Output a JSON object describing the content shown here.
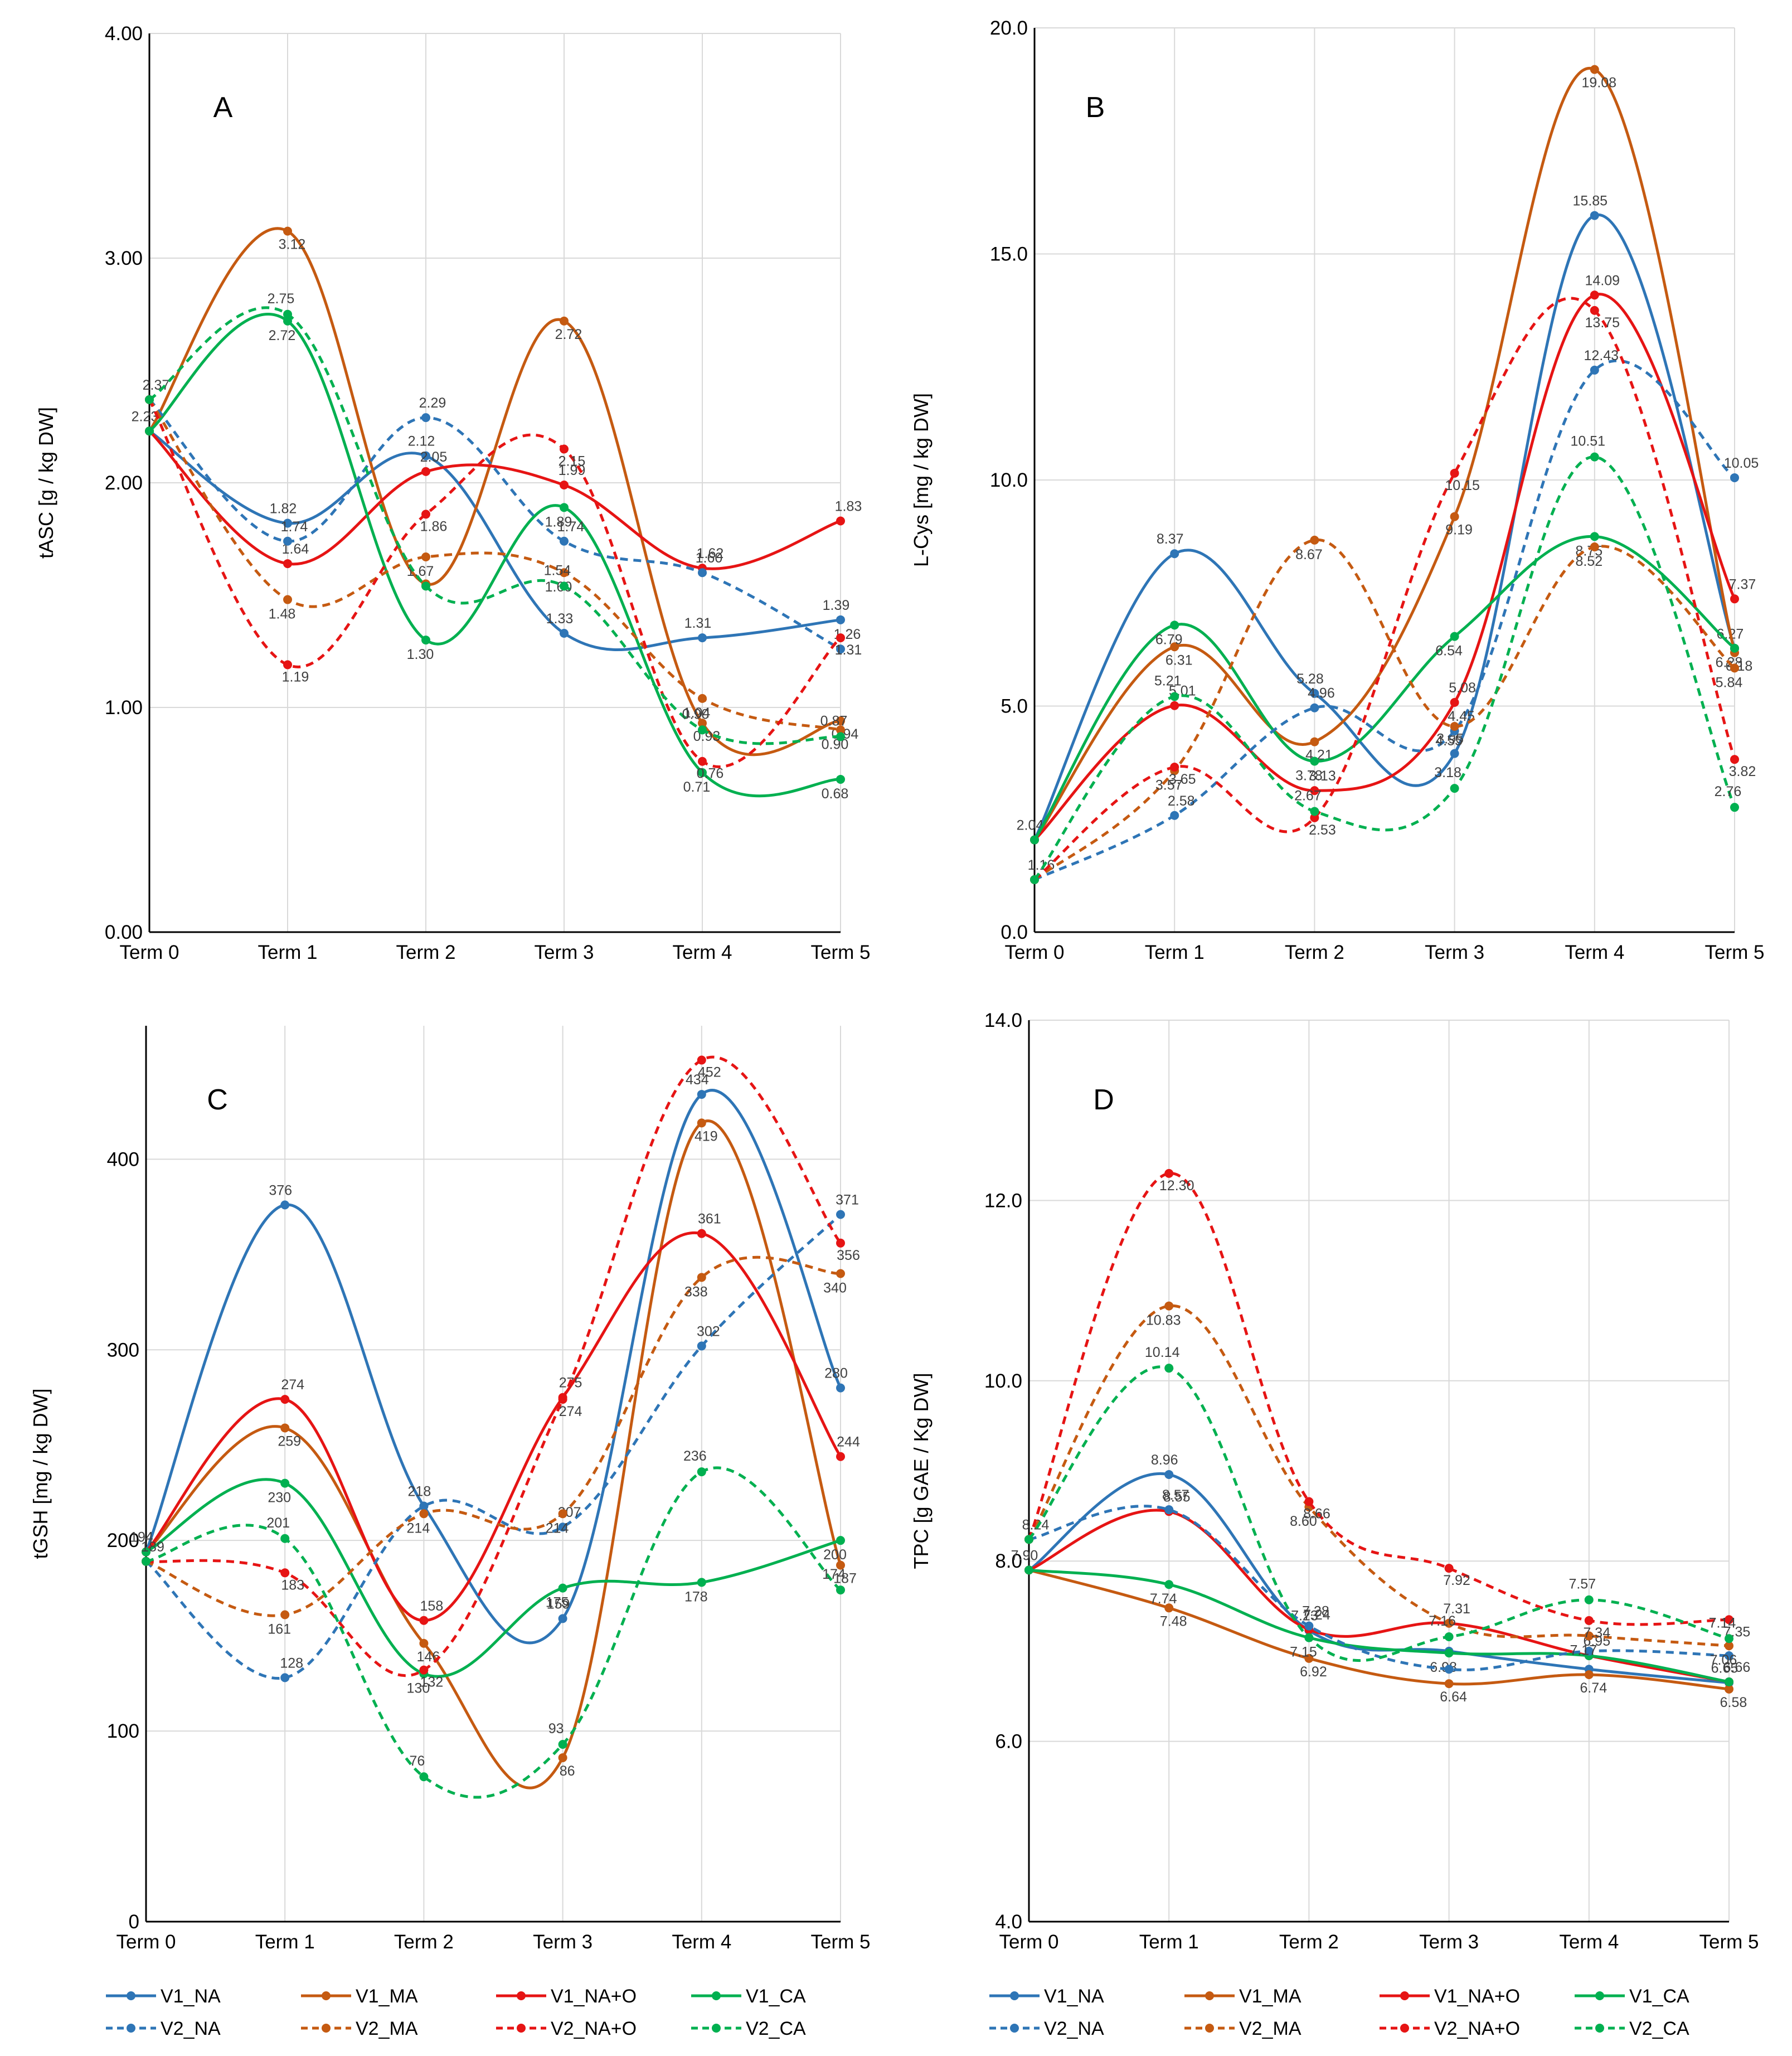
{
  "colors": {
    "blue": "#2E75B6",
    "orange": "#C55A11",
    "red": "#E61414",
    "green": "#00B050",
    "grid": "#D9D9D9",
    "axis": "#000000"
  },
  "legend": [
    {
      "name": "V1_NA",
      "color": "blue",
      "dash": false
    },
    {
      "name": "V1_MA",
      "color": "orange",
      "dash": false
    },
    {
      "name": "V1_NA+O",
      "color": "red",
      "dash": false
    },
    {
      "name": "V1_CA",
      "color": "green",
      "dash": false
    },
    {
      "name": "V2_NA",
      "color": "blue",
      "dash": true
    },
    {
      "name": "V2_MA",
      "color": "orange",
      "dash": true
    },
    {
      "name": "V2_NA+O",
      "color": "red",
      "dash": true
    },
    {
      "name": "V2_CA",
      "color": "green",
      "dash": true
    }
  ],
  "chart_data": [
    {
      "panel": "A",
      "type": "line",
      "categories": [
        "Term 0",
        "Term 1",
        "Term 2",
        "Term 3",
        "Term 4",
        "Term 5"
      ],
      "ylabel": "tASC  [g / kg DW]",
      "ylim": [
        0,
        4
      ],
      "yticks": [
        "0.00",
        "1.00",
        "2.00",
        "3.00",
        "4.00"
      ],
      "yticks_values": [
        0,
        1,
        2,
        3,
        4
      ],
      "series": [
        {
          "name": "V1_NA",
          "values": [
            2.23,
            1.82,
            2.12,
            1.33,
            1.31,
            1.39
          ],
          "labels": [
            "2.23",
            "1.82",
            "2.12",
            "1.33",
            "1.31",
            "1.39"
          ]
        },
        {
          "name": "V1_MA",
          "values": [
            2.23,
            3.12,
            1.55,
            2.72,
            0.93,
            0.94
          ],
          "labels": [
            "",
            "3.12",
            "",
            "2.72",
            "0.93",
            "0.94"
          ]
        },
        {
          "name": "V1_NA+O",
          "values": [
            2.23,
            1.64,
            2.05,
            1.99,
            1.62,
            1.83
          ],
          "labels": [
            "",
            "1.64",
            "2.05",
            "1.99",
            "1.62",
            "1.83"
          ]
        },
        {
          "name": "V1_CA",
          "values": [
            2.23,
            2.72,
            1.3,
            1.89,
            0.71,
            0.68
          ],
          "labels": [
            "",
            "2.72",
            "1.30",
            "1.89",
            "0.71",
            "0.68"
          ]
        },
        {
          "name": "V2_NA",
          "values": [
            2.37,
            1.74,
            2.29,
            1.74,
            1.6,
            1.26
          ],
          "labels": [
            "2.37",
            "1.74",
            "2.29",
            "1.74",
            "1.60",
            "1.26"
          ]
        },
        {
          "name": "V2_MA",
          "values": [
            2.37,
            1.48,
            1.67,
            1.6,
            1.04,
            0.9
          ],
          "labels": [
            "",
            "1.48",
            "1.67",
            "1.60",
            "1.04",
            "0.90"
          ]
        },
        {
          "name": "V2_NA+O",
          "values": [
            2.37,
            1.19,
            1.86,
            2.15,
            0.76,
            1.31
          ],
          "labels": [
            "",
            "1.19",
            "1.86",
            "2.15",
            "0.76",
            "1.31"
          ]
        },
        {
          "name": "V2_CA",
          "values": [
            2.37,
            2.75,
            1.54,
            1.54,
            0.9,
            0.87
          ],
          "labels": [
            "",
            "2.75",
            "",
            "1.54",
            "0.90",
            "0.87"
          ]
        }
      ]
    },
    {
      "panel": "B",
      "type": "line",
      "categories": [
        "Term 0",
        "Term 1",
        "Term 2",
        "Term 3",
        "Term 4",
        "Term 5"
      ],
      "ylabel": "L-Cys  [mg / kg DW]",
      "ylim": [
        0,
        20
      ],
      "yticks": [
        "0.0",
        "5.0",
        "10.0",
        "15.0",
        "20.0"
      ],
      "yticks_values": [
        0,
        5,
        10,
        15,
        20
      ],
      "series": [
        {
          "name": "V1_NA",
          "values": [
            2.04,
            8.37,
            5.28,
            3.95,
            15.85,
            6.27
          ],
          "labels": [
            "2.04",
            "8.37",
            "5.28",
            "3.95",
            "15.85",
            "6.27"
          ]
        },
        {
          "name": "V1_MA",
          "values": [
            2.04,
            6.31,
            4.21,
            9.19,
            19.08,
            6.18
          ],
          "labels": [
            "",
            "6.31",
            "4.21",
            "9.19",
            "19.08",
            "6.18"
          ]
        },
        {
          "name": "V1_NA+O",
          "values": [
            2.04,
            5.01,
            3.13,
            5.08,
            14.09,
            7.37
          ],
          "labels": [
            "",
            "5.01",
            "3.13",
            "5.08",
            "14.09",
            "7.37"
          ]
        },
        {
          "name": "V1_CA",
          "values": [
            2.04,
            6.79,
            3.78,
            6.54,
            8.75,
            6.28
          ],
          "labels": [
            "",
            "6.79",
            "3.78",
            "6.54",
            "8.75",
            "6.28"
          ]
        },
        {
          "name": "V2_NA",
          "values": [
            1.16,
            2.58,
            4.96,
            4.45,
            12.43,
            10.05
          ],
          "labels": [
            "1.16",
            "2.58",
            "4.96",
            "4.45",
            "12.43",
            "10.05"
          ]
        },
        {
          "name": "V2_MA",
          "values": [
            1.16,
            3.57,
            8.67,
            4.55,
            8.52,
            5.84
          ],
          "labels": [
            "",
            "3.57",
            "8.67",
            "4.55",
            "8.52",
            "5.84"
          ]
        },
        {
          "name": "V2_NA+O",
          "values": [
            1.16,
            3.65,
            2.53,
            10.15,
            13.75,
            3.82
          ],
          "labels": [
            "",
            "3.65",
            "2.53",
            "10.15",
            "13.75",
            "3.82"
          ]
        },
        {
          "name": "V2_CA",
          "values": [
            1.16,
            5.21,
            2.67,
            3.18,
            10.51,
            2.76
          ],
          "labels": [
            "",
            "5.21",
            "2.67",
            "3.18",
            "10.51",
            "2.76"
          ]
        }
      ]
    },
    {
      "panel": "C",
      "type": "line",
      "categories": [
        "Term 0",
        "Term 1",
        "Term 2",
        "Term 3",
        "Term 4",
        "Term 5"
      ],
      "ylabel": "tGSH  [mg / kg DW]",
      "ylim": [
        0,
        470
      ],
      "yticks": [
        "0",
        "100",
        "200",
        "300",
        "400"
      ],
      "yticks_values": [
        0,
        100,
        200,
        300,
        400
      ],
      "series": [
        {
          "name": "V1_NA",
          "values": [
            194,
            376,
            218,
            159,
            434,
            280
          ],
          "labels": [
            "194",
            "376",
            "218",
            "159",
            "434",
            "280"
          ]
        },
        {
          "name": "V1_MA",
          "values": [
            194,
            259,
            146,
            86,
            419,
            187
          ],
          "labels": [
            "",
            "259",
            "146",
            "86",
            "419",
            "187"
          ]
        },
        {
          "name": "V1_NA+O",
          "values": [
            194,
            274,
            158,
            275,
            361,
            244
          ],
          "labels": [
            "",
            "274",
            "158",
            "275",
            "361",
            "244"
          ]
        },
        {
          "name": "V1_CA",
          "values": [
            194,
            230,
            130,
            175,
            178,
            200
          ],
          "labels": [
            "",
            "230",
            "130",
            "175",
            "178",
            "200"
          ]
        },
        {
          "name": "V2_NA",
          "values": [
            189,
            128,
            218,
            207,
            302,
            371
          ],
          "labels": [
            "189",
            "128",
            "",
            "207",
            "302",
            "371"
          ]
        },
        {
          "name": "V2_MA",
          "values": [
            189,
            161,
            214,
            214,
            338,
            340
          ],
          "labels": [
            "",
            "161",
            "214",
            "214",
            "338",
            "340"
          ]
        },
        {
          "name": "V2_NA+O",
          "values": [
            189,
            183,
            132,
            274,
            452,
            356
          ],
          "labels": [
            "",
            "183",
            "132",
            "274",
            "452",
            "356"
          ]
        },
        {
          "name": "V2_CA",
          "values": [
            189,
            201,
            76,
            93,
            236,
            174
          ],
          "labels": [
            "",
            "201",
            "76",
            "93",
            "236",
            "174"
          ]
        }
      ]
    },
    {
      "panel": "D",
      "type": "line",
      "categories": [
        "Term 0",
        "Term 1",
        "Term 2",
        "Term 3",
        "Term 4",
        "Term 5"
      ],
      "ylabel": "TPC  [g GAE / Kg DW]",
      "ylim": [
        4,
        14
      ],
      "yticks": [
        "4.0",
        "6.0",
        "8.0",
        "10.0",
        "12.0",
        "14.0"
      ],
      "yticks_values": [
        4,
        6,
        8,
        10,
        12,
        14
      ],
      "series": [
        {
          "name": "V1_NA",
          "values": [
            7.9,
            8.96,
            7.23,
            7.0,
            6.8,
            6.65
          ],
          "labels": [
            "7.90",
            "8.96",
            "7.23",
            "",
            "",
            "6.65"
          ]
        },
        {
          "name": "V1_MA",
          "values": [
            7.9,
            7.48,
            6.92,
            6.64,
            6.74,
            6.58
          ],
          "labels": [
            "",
            "7.48",
            "6.92",
            "6.64",
            "6.74",
            "6.58"
          ]
        },
        {
          "name": "V1_NA+O",
          "values": [
            7.9,
            8.55,
            7.24,
            7.31,
            6.95,
            6.66
          ],
          "labels": [
            "",
            "8.55",
            "7.24",
            "7.31",
            "6.95",
            "6.66"
          ]
        },
        {
          "name": "V1_CA",
          "values": [
            7.9,
            7.74,
            7.15,
            6.98,
            6.95,
            6.66
          ],
          "labels": [
            "",
            "7.74",
            "7.15",
            "6.98",
            "",
            ""
          ]
        },
        {
          "name": "V2_NA",
          "values": [
            8.24,
            8.57,
            7.28,
            6.8,
            7.0,
            6.95
          ],
          "labels": [
            "8.24",
            "8.57",
            "7.28",
            "",
            "",
            ""
          ]
        },
        {
          "name": "V2_MA",
          "values": [
            8.24,
            10.83,
            8.6,
            7.31,
            7.17,
            7.06
          ],
          "labels": [
            "",
            "10.83",
            "8.60",
            "",
            "7.17",
            "7.06"
          ]
        },
        {
          "name": "V2_NA+O",
          "values": [
            8.24,
            12.3,
            8.66,
            7.92,
            7.34,
            7.35
          ],
          "labels": [
            "",
            "12.30",
            "8.66",
            "7.92",
            "7.34",
            "7.35"
          ]
        },
        {
          "name": "V2_CA",
          "values": [
            8.24,
            10.14,
            7.15,
            7.16,
            7.57,
            7.14
          ],
          "labels": [
            "",
            "10.14",
            "",
            "7.16",
            "7.57",
            "7.14"
          ]
        }
      ]
    }
  ]
}
